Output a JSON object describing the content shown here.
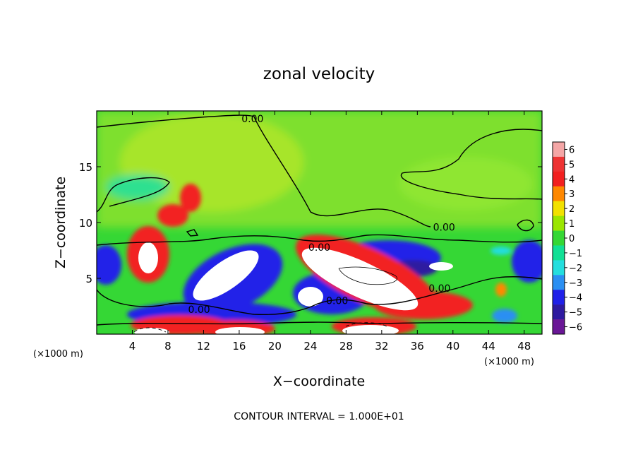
{
  "chart_data": {
    "type": "heatmap",
    "title": "zonal velocity",
    "xlabel": "X−coordinate",
    "ylabel": "Z−coordinate",
    "x_unit_label": "(×1000 m)",
    "y_unit_label": "(×1000 m)",
    "footer": "CONTOUR INTERVAL = 1.000E+01",
    "xlim": [
      0,
      50
    ],
    "ylim": [
      0,
      20
    ],
    "x_ticks": [
      4,
      8,
      12,
      16,
      20,
      24,
      28,
      32,
      36,
      40,
      44,
      48
    ],
    "y_ticks": [
      5,
      10,
      15
    ],
    "colorbar": {
      "ticks": [
        6,
        5,
        4,
        3,
        2,
        1,
        0,
        -1,
        -2,
        -3,
        -4,
        -5,
        -6
      ],
      "tick_labels": [
        "6",
        "5",
        "4",
        "3",
        "2",
        "1",
        "0",
        "−1",
        "−2",
        "−3",
        "−4",
        "−5",
        "−6"
      ],
      "range": [
        -6,
        6
      ],
      "colors": [
        "#f4a6a6",
        "#ee3333",
        "#f22020",
        "#ff8800",
        "#f2e100",
        "#9be600",
        "#35d735",
        "#11e095",
        "#24dede",
        "#2a8ff2",
        "#2020e8",
        "#2e1aa0",
        "#6a1796"
      ]
    },
    "contour_labels": [
      {
        "text": "0.00",
        "x": 17.5,
        "z": 19.3
      },
      {
        "text": "0.00",
        "x": 39.0,
        "z": 9.6
      },
      {
        "text": "0.00",
        "x": 25.0,
        "z": 7.8
      },
      {
        "text": "0.00",
        "x": 38.5,
        "z": 4.1
      },
      {
        "text": "0.00",
        "x": 27.0,
        "z": 3.0
      },
      {
        "text": "0.00",
        "x": 11.5,
        "z": 2.2
      }
    ]
  }
}
